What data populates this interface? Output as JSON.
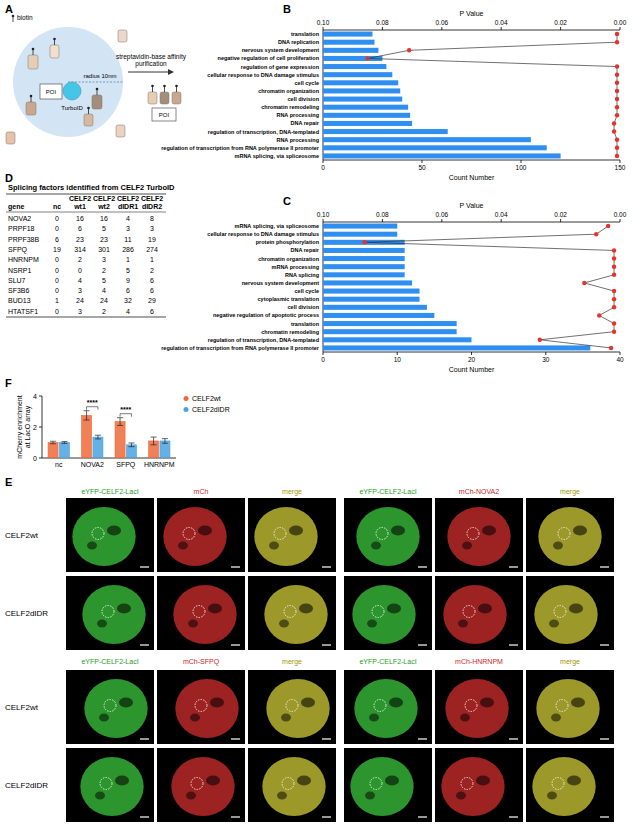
{
  "panel_labels": [
    "A",
    "B",
    "C",
    "D",
    "E",
    "F"
  ],
  "diagram": {
    "biotin_label": "biotin",
    "radius_label": "radius 10nm",
    "bait": "POI",
    "enzyme": "TurboID",
    "arrow_label": "streptavidin-base affinity purification",
    "purified_bait": "POI"
  },
  "chart_data": [
    {
      "type": "bar",
      "orientation": "horizontal",
      "categories": [
        "translation",
        "DNA replication",
        "nervous system development",
        "negative regulation of cell proliferation",
        "regulation of gene expression",
        "cellular response to DNA damage stimulus",
        "cell cycle",
        "chromatin organization",
        "cell division",
        "chromatin remodeling",
        "RNA processing",
        "DNA repair",
        "regulation of transcription, DNA-templated",
        "RNA processing",
        "regulation of transcription from RNA polymerase II promoter",
        "mRNA splicing, via spliceosome"
      ],
      "series": [
        {
          "name": "Count Number",
          "type": "bar",
          "color": "#2f8ff0",
          "values": [
            25,
            26,
            28,
            30,
            32,
            35,
            38,
            39,
            40,
            43,
            44,
            45,
            63,
            105,
            113,
            120
          ]
        },
        {
          "name": "P Value",
          "type": "line",
          "axis": "y2",
          "color": "#e8312a",
          "marker": "circle",
          "values": [
            0.001,
            0.001,
            0.071,
            0.085,
            0.001,
            0.001,
            0.001,
            0.001,
            0.001,
            0.001,
            0.001,
            0.002,
            0.002,
            0.001,
            0.001,
            0.001
          ]
        }
      ],
      "ylim": [
        0,
        150
      ],
      "yticks": [
        0,
        50,
        100,
        150
      ],
      "y2lim": [
        0.1,
        0
      ],
      "y2ticks": [
        {
          "value": 0.1,
          "label": "0.10"
        },
        0.08,
        0.06,
        0.04,
        0.02,
        {
          "value": 0,
          "label": "0.00"
        }
      ]
    },
    {
      "type": "bar",
      "orientation": "horizontal",
      "categories": [
        "mRNA splicing, via spliceosome",
        "cellular response to DNA damage stimulus",
        "protein phosphorylation",
        "DNA repair",
        "chromatin organization",
        "mRNA processing",
        "RNA splicing",
        "nervous system development",
        "cell cycle",
        "cytoplasmic translation",
        "cell division",
        "negative regulation of apoptotic process",
        "translation",
        "chromatin remodeling",
        "regulation of transcription, DNA-templated",
        "regulation of transcription from RNA polymerase II promoter"
      ],
      "series": [
        {
          "name": "Count Number",
          "type": "bar",
          "color": "#2f8ff0",
          "values": [
            10,
            10,
            11,
            11,
            11,
            11,
            11,
            12,
            13,
            13,
            14,
            15,
            18,
            18,
            20,
            36
          ]
        },
        {
          "name": "P Value",
          "type": "line",
          "axis": "y2",
          "color": "#e8312a",
          "marker": "circle",
          "values": [
            0.004,
            0.008,
            0.086,
            0.002,
            0.002,
            0.002,
            0.002,
            0.012,
            0.002,
            0.002,
            0.002,
            0.007,
            0.002,
            0.002,
            0.027,
            0.003
          ]
        }
      ],
      "ylim": [
        0,
        40
      ],
      "yticks": [
        0,
        10,
        20,
        30,
        40
      ],
      "y2lim": [
        0.1,
        0
      ],
      "y2ticks": [
        {
          "value": 0.1,
          "label": "0.10"
        },
        0.08,
        0.06,
        0.04,
        0.02,
        {
          "value": 0,
          "label": "0.00"
        }
      ]
    },
    {
      "type": "bar",
      "categories": [
        "nc",
        "NOVA2",
        "SFPQ",
        "HNRNPM"
      ],
      "series": [
        {
          "name": "CELF2wt",
          "color": "#ee6a3a",
          "values": [
            1,
            2.75,
            2.35,
            1.1
          ],
          "errors": [
            0.08,
            0.3,
            0.25,
            0.25
          ]
        },
        {
          "name": "CELF2dIDR",
          "color": "#4aa3e0",
          "values": [
            1,
            1.35,
            0.85,
            1.1
          ],
          "errors": [
            0.06,
            0.12,
            0.12,
            0.15
          ]
        }
      ],
      "y_label": "mCherry enrichment at LacO array",
      "ylim": [
        0,
        4
      ],
      "yticks": [
        0,
        2,
        4
      ],
      "legend": "top-right",
      "annotations": [
        {
          "text": "****",
          "category": "NOVA2"
        },
        {
          "text": "****",
          "category": "SFPQ"
        }
      ]
    }
  ],
  "table": {
    "title": "Splicing factors identified from CELF2 TurboID",
    "header": [
      "gene",
      "nc",
      "CELF2wt1",
      "CELF2wt2",
      "CELF2dIDR1",
      "CELF2dIDR2"
    ],
    "rows": [
      [
        "NOVA2",
        0,
        16,
        16,
        4,
        8
      ],
      [
        "PRPF18",
        0,
        6,
        5,
        3,
        3
      ],
      [
        "PRPF38B",
        6,
        23,
        23,
        11,
        19
      ],
      [
        "SFPQ",
        19,
        314,
        301,
        286,
        274
      ],
      [
        "HNRNPM",
        0,
        2,
        3,
        1,
        1
      ],
      [
        "NSRP1",
        0,
        0,
        2,
        5,
        2
      ],
      [
        "SLU7",
        0,
        4,
        5,
        9,
        6
      ],
      [
        "SF3B6",
        0,
        3,
        4,
        6,
        6
      ],
      [
        "BUD13",
        1,
        24,
        24,
        32,
        29
      ],
      [
        "HTATSF1",
        0,
        3,
        2,
        4,
        6
      ]
    ]
  },
  "images": {
    "blocks": [
      {
        "headers": [
          "eYFP-CELF2-LacI",
          "mCh",
          "merge"
        ],
        "rows": [
          "CELF2wt",
          "CELF2dIDR"
        ]
      },
      {
        "headers": [
          "eYFP-CELF2-LacI",
          "mCh-NOVA2",
          "merge"
        ]
      },
      {
        "headers": [
          "eYFP-CELF2-LacI",
          "mCh-SFPQ",
          "merge"
        ],
        "rows": [
          "CELF2wt",
          "CELF2dIDR"
        ]
      },
      {
        "headers": [
          "eYFP-CELF2-LacI",
          "mCh-HNRNPM",
          "merge"
        ]
      }
    ]
  }
}
